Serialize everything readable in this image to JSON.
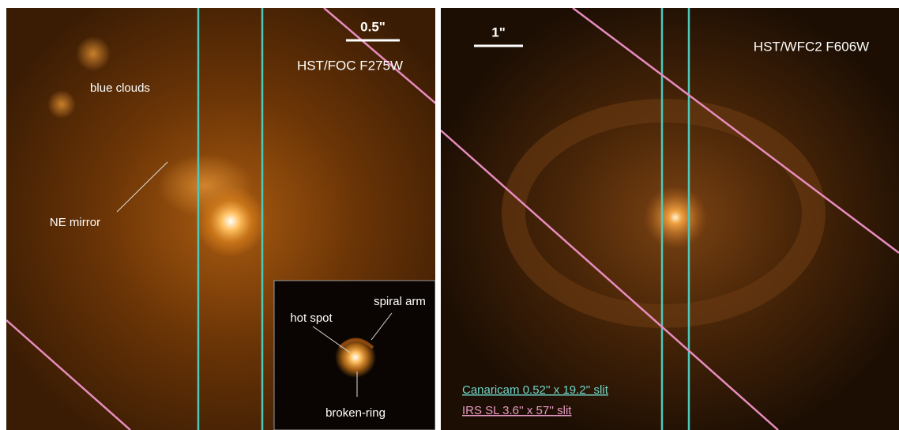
{
  "left_panel": {
    "scale_label": "0.5\"",
    "instrument": "HST/FOC F275W",
    "labels": [
      "blue clouds",
      "NE mirror"
    ],
    "inset_labels": [
      "hot spot",
      "spiral arm",
      "broken-ring"
    ]
  },
  "right_panel": {
    "scale_label": "1\"",
    "instrument": "HST/WFC2 F606W",
    "legend": [
      "Canaricam 0.52'' x 19.2'' slit",
      "IRS SL 3.6'' x 57'' slit"
    ]
  }
}
